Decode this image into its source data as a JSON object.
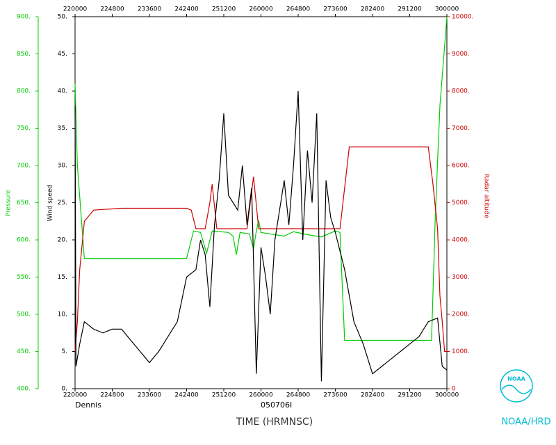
{
  "chart_data": {
    "type": "line",
    "xlabel": "TIME (HRMNSC)",
    "storm": "Dennis",
    "flight": "050706I",
    "credit": "NOAA/HRD",
    "logo_text": "NOAA",
    "xlim": [
      22,
      30
    ],
    "xticks": [
      {
        "value": 22,
        "label": "220000"
      },
      {
        "value": 22.8,
        "label": "224800"
      },
      {
        "value": 23.6,
        "label": "233600"
      },
      {
        "value": 24.4,
        "label": "242400"
      },
      {
        "value": 25.2,
        "label": "251200"
      },
      {
        "value": 26,
        "label": "260000"
      },
      {
        "value": 26.8,
        "label": "264800"
      },
      {
        "value": 27.6,
        "label": "273600"
      },
      {
        "value": 28.4,
        "label": "282400"
      },
      {
        "value": 29.2,
        "label": "291200"
      },
      {
        "value": 30,
        "label": "300000"
      }
    ],
    "ylabel": "Wind speed",
    "ylim": [
      0,
      50
    ],
    "yticks": [
      {
        "value": 0,
        "label": "0."
      },
      {
        "value": 5,
        "label": "5."
      },
      {
        "value": 10,
        "label": "10."
      },
      {
        "value": 15,
        "label": "15."
      },
      {
        "value": 20,
        "label": "20."
      },
      {
        "value": 25,
        "label": "25."
      },
      {
        "value": 30,
        "label": "30."
      },
      {
        "value": 35,
        "label": "35."
      },
      {
        "value": 40,
        "label": "40."
      },
      {
        "value": 45,
        "label": "45."
      },
      {
        "value": 50,
        "label": "50."
      }
    ],
    "y2label": "Radar altitude",
    "y2lim": [
      0,
      10000
    ],
    "y2ticks": [
      0,
      {
        "value": 1000,
        "label": "1000."
      },
      {
        "value": 2000,
        "label": "2000."
      },
      {
        "value": 3000,
        "label": "3000."
      },
      {
        "value": 4000,
        "label": "4000."
      },
      {
        "value": 5000,
        "label": "5000."
      },
      {
        "value": 6000,
        "label": "6000."
      },
      {
        "value": 7000,
        "label": "7000."
      },
      {
        "value": 8000,
        "label": "8000."
      },
      {
        "value": 9000,
        "label": "9000."
      },
      {
        "value": 10000,
        "label": "10000."
      }
    ],
    "y3label": "Pressure",
    "y3lim": [
      400,
      900
    ],
    "y3ticks": [
      {
        "value": 400,
        "label": "400."
      },
      {
        "value": 450,
        "label": "450."
      },
      {
        "value": 500,
        "label": "500."
      },
      {
        "value": 550,
        "label": "550."
      },
      {
        "value": 600,
        "label": "600."
      },
      {
        "value": 650,
        "label": "650."
      },
      {
        "value": 700,
        "label": "700."
      },
      {
        "value": 750,
        "label": "750."
      },
      {
        "value": 800,
        "label": "800."
      },
      {
        "value": 850,
        "label": "850."
      },
      {
        "value": 900,
        "label": "900."
      }
    ],
    "series": [
      {
        "axis": "y3",
        "color": "#00cc00",
        "x": [
          22.0,
          22.05,
          22.2,
          23.0,
          24.4,
          24.55,
          24.7,
          24.83,
          24.95,
          25.3,
          25.4,
          25.47,
          25.55,
          25.75,
          25.84,
          25.9,
          25.95,
          26.0,
          26.5,
          26.7,
          27.0,
          27.3,
          27.6,
          27.7,
          27.8,
          28.5,
          29.67,
          29.75,
          29.85,
          30.0
        ],
        "values": [
          810,
          700,
          575,
          575,
          575,
          612,
          610,
          582,
          612,
          610,
          605,
          580,
          610,
          608,
          588,
          612,
          626,
          610,
          605,
          611,
          607,
          604,
          612,
          610,
          465,
          465,
          465,
          630,
          780,
          900
        ]
      },
      {
        "axis": "y2",
        "color": "#cc0000",
        "x": [
          22.0,
          22.05,
          22.1,
          22.2,
          22.4,
          23.0,
          24.4,
          24.5,
          24.6,
          24.8,
          24.9,
          24.95,
          25.05,
          25.2,
          25.7,
          25.84,
          25.95,
          26.2,
          27.0,
          27.7,
          27.9,
          28.5,
          29.6,
          29.7,
          29.8,
          29.85,
          29.9,
          29.95,
          30.0
        ],
        "values": [
          1000,
          1800,
          3200,
          4500,
          4800,
          4850,
          4850,
          4800,
          4300,
          4300,
          5000,
          5500,
          4300,
          4300,
          4300,
          5700,
          4300,
          4300,
          4300,
          4300,
          6500,
          6500,
          6500,
          5500,
          4300,
          2500,
          1800,
          1000,
          1000
        ]
      },
      {
        "axis": "y",
        "color": "#000000",
        "x": [
          22.0,
          22.02,
          22.1,
          22.2,
          22.4,
          22.6,
          22.8,
          23.0,
          23.2,
          23.4,
          23.6,
          23.8,
          24.0,
          24.2,
          24.4,
          24.6,
          24.7,
          24.8,
          24.9,
          25.0,
          25.1,
          25.2,
          25.3,
          25.4,
          25.5,
          25.6,
          25.7,
          25.8,
          25.9,
          26.0,
          26.1,
          26.2,
          26.3,
          26.4,
          26.5,
          26.6,
          26.7,
          26.8,
          26.9,
          27.0,
          27.1,
          27.2,
          27.3,
          27.4,
          27.5,
          27.6,
          27.8,
          28.0,
          28.2,
          28.4,
          28.6,
          28.8,
          29.0,
          29.2,
          29.4,
          29.6,
          29.8,
          29.9,
          30.0
        ],
        "values": [
          38,
          3,
          6,
          9,
          8,
          7.5,
          8,
          8,
          6.5,
          5,
          3.5,
          5,
          7,
          9,
          15,
          16,
          20,
          18,
          11,
          22,
          28,
          37,
          26,
          25,
          24,
          30,
          22,
          27,
          2,
          19,
          15,
          10,
          20,
          24,
          28,
          22,
          30,
          40,
          20,
          32,
          25,
          37,
          1,
          28,
          23,
          21,
          16,
          9,
          6,
          2,
          3,
          4,
          5,
          6,
          7,
          9,
          9.5,
          3,
          2.5
        ]
      }
    ]
  }
}
